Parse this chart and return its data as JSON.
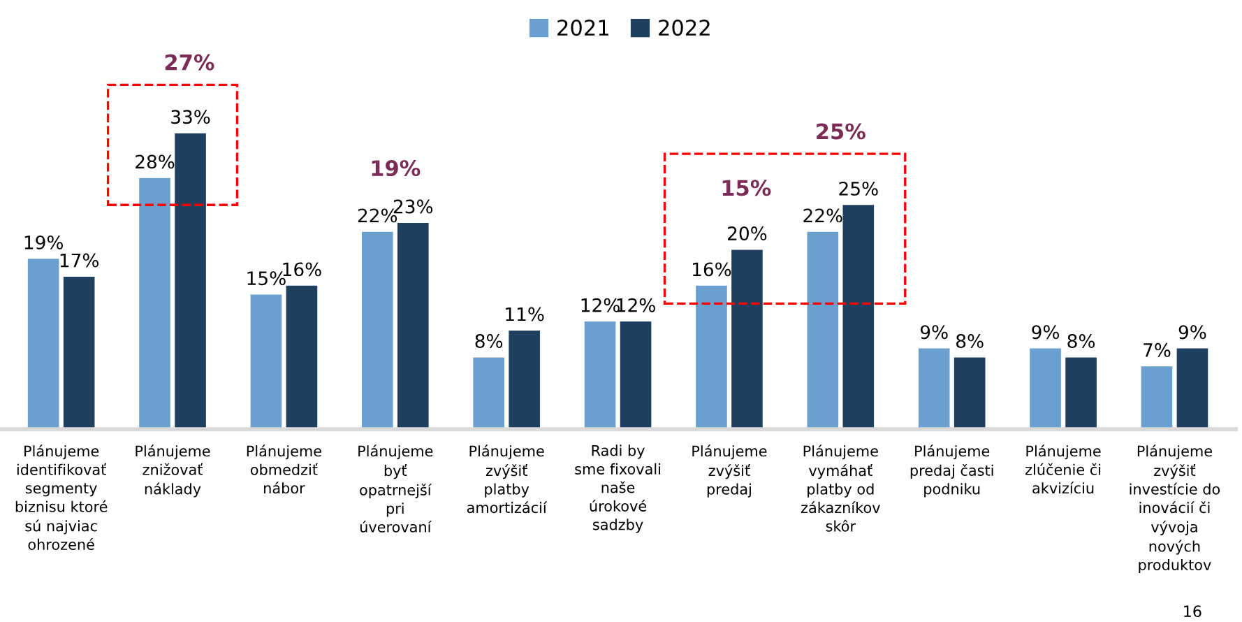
{
  "chart_data": {
    "type": "bar",
    "legend": "top",
    "grid": false,
    "categories": [
      "Plánujeme\nidentifikovať\nsegmenty\nbiznisu ktoré\nsú najviac\nohrozené",
      "Plánujeme\nznižovať\nnáklady",
      "Plánujeme\nobmedziť\nnábor",
      "Plánujeme\nbyť\nopatrnejší\npri\núverovaní",
      "Plánujeme\nzvýšiť\nplatby\namortizácií",
      "Radi by\nsme fixovali\nnaše\núrokové\nsadzby",
      "Plánujeme\nzvýšiť\npredaj",
      "Plánujeme\nvymáhať\nplatby od\nzákazníkov\nskôr",
      "Plánujeme\npredaj časti\npodniku",
      "Plánujeme\nzlúčenie či\nakvizíciu",
      "Plánujeme\nzvýšiť\ninvestície do\ninovácií či\nvývoja\nnových\nproduktov"
    ],
    "series": [
      {
        "name": "2021",
        "color": "#6a9fd0",
        "values": [
          19,
          28,
          15,
          22,
          8,
          12,
          16,
          22,
          9,
          9,
          7
        ],
        "value_labels": [
          "19%",
          "28%",
          "15%",
          "22%",
          "8%",
          "12%",
          "16%",
          "22%",
          "9%",
          "9%",
          "7%"
        ]
      },
      {
        "name": "2022",
        "color": "#1f3f5f",
        "values": [
          17,
          33,
          16,
          23,
          11,
          12,
          20,
          25,
          8,
          8,
          9
        ],
        "value_labels": [
          "17%",
          "33%",
          "16%",
          "23%",
          "11%",
          "12%",
          "20%",
          "25%",
          "8%",
          "8%",
          "9%"
        ]
      }
    ],
    "annotations": [
      "27%",
      "19%",
      "15%",
      "25%",
      "16"
    ]
  }
}
